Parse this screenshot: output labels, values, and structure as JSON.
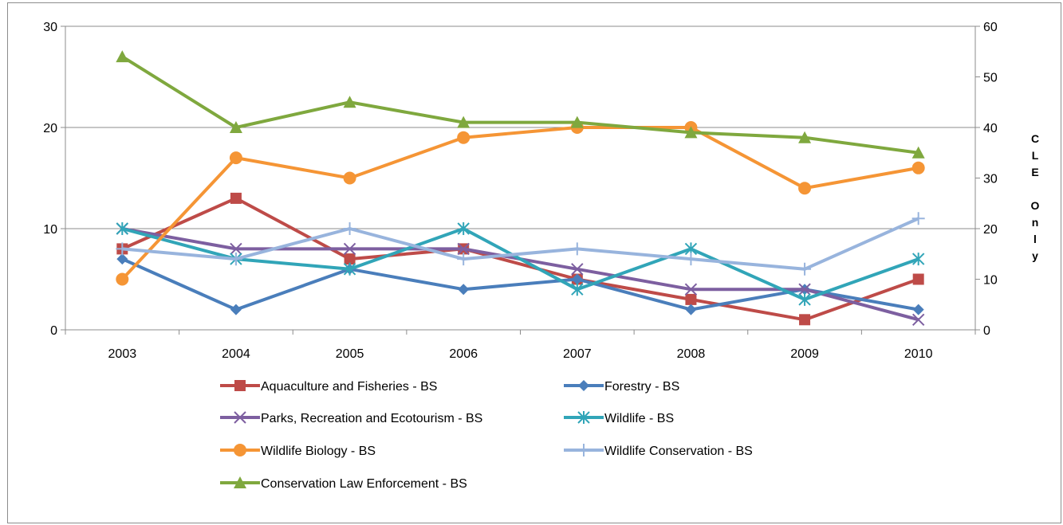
{
  "chart_data": {
    "type": "line",
    "categories": [
      "2003",
      "2004",
      "2005",
      "2006",
      "2007",
      "2008",
      "2009",
      "2010"
    ],
    "y_left": {
      "ylim": [
        0,
        30
      ],
      "ticks": [
        "0",
        "10",
        "20",
        "30"
      ]
    },
    "y_right": {
      "ylim": [
        0,
        60
      ],
      "ticks": [
        "0",
        "10",
        "20",
        "30",
        "40",
        "50",
        "60"
      ],
      "label": "CLE Only"
    },
    "gridlines": "horizontal",
    "legend_position": "bottom",
    "series": [
      {
        "name": "Aquaculture and Fisheries - BS",
        "color": "#be4b48",
        "marker": "square",
        "axis": "left",
        "values": [
          8,
          13,
          7,
          8,
          5,
          3,
          1,
          5
        ]
      },
      {
        "name": "Forestry - BS",
        "color": "#4a7ebb",
        "marker": "diamond",
        "axis": "left",
        "values": [
          7,
          2,
          6,
          4,
          5,
          2,
          4,
          2
        ]
      },
      {
        "name": "Parks, Recreation and Ecotourism - BS",
        "color": "#7d5fa0",
        "marker": "x",
        "axis": "left",
        "values": [
          10,
          8,
          8,
          8,
          6,
          4,
          4,
          1
        ]
      },
      {
        "name": "Wildlife - BS",
        "color": "#31a5b8",
        "marker": "star",
        "axis": "left",
        "values": [
          10,
          7,
          6,
          10,
          4,
          8,
          3,
          7
        ]
      },
      {
        "name": "Wildlife Biology - BS",
        "color": "#f59535",
        "marker": "circle",
        "axis": "left",
        "values": [
          5,
          17,
          15,
          19,
          20,
          20,
          14,
          16
        ]
      },
      {
        "name": "Wildlife Conservation - BS",
        "color": "#98b4dd",
        "marker": "plus",
        "axis": "left",
        "values": [
          8,
          7,
          10,
          7,
          8,
          7,
          6,
          11
        ]
      },
      {
        "name": "Conservation Law Enforcement - BS",
        "color": "#7fa83e",
        "marker": "triangle",
        "axis": "right",
        "values": [
          54,
          40,
          45,
          41,
          41,
          39,
          38,
          35
        ]
      }
    ]
  }
}
